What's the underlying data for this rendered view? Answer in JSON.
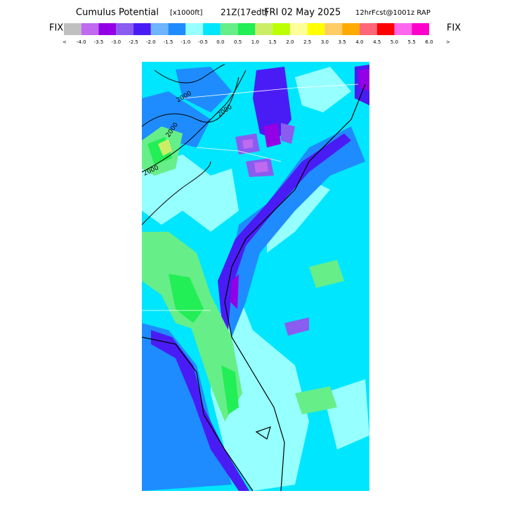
{
  "header": {
    "title": "Cumulus Potential",
    "units": "[x1000ft]",
    "valid": "21Z(17edt)",
    "date": "FRI 02 May 2025",
    "model": "12hrFcst@1001z RAP"
  },
  "legend": {
    "left": "FIX",
    "right": "FIX",
    "left_arrow": "<",
    "right_arrow": ">",
    "colors": [
      "#c0c0c0",
      "#c06af0",
      "#9400e6",
      "#8a5cf0",
      "#4a1cf5",
      "#6eb4ff",
      "#1e8cff",
      "#96ffff",
      "#00e6ff",
      "#66ee88",
      "#22ee55",
      "#ccee66",
      "#bbff00",
      "#ffff99",
      "#ffff00",
      "#ffcc66",
      "#ffaa00",
      "#ff6677",
      "#ff0000",
      "#ff66ee",
      "#ff00cc"
    ],
    "labels": [
      "-4.0",
      "-3.5",
      "-3.0",
      "-2.5",
      "-2.0",
      "-1.5",
      "-1.0",
      "-0.5",
      "0.0",
      "0.5",
      "1.0",
      "1.5",
      "2.0",
      "2.5",
      "3.0",
      "3.5",
      "4.0",
      "4.5",
      "5.0",
      "5.5",
      "6.0"
    ]
  },
  "map": {
    "contour_labels": [
      "2000",
      "2000",
      "2000",
      "2000"
    ]
  }
}
